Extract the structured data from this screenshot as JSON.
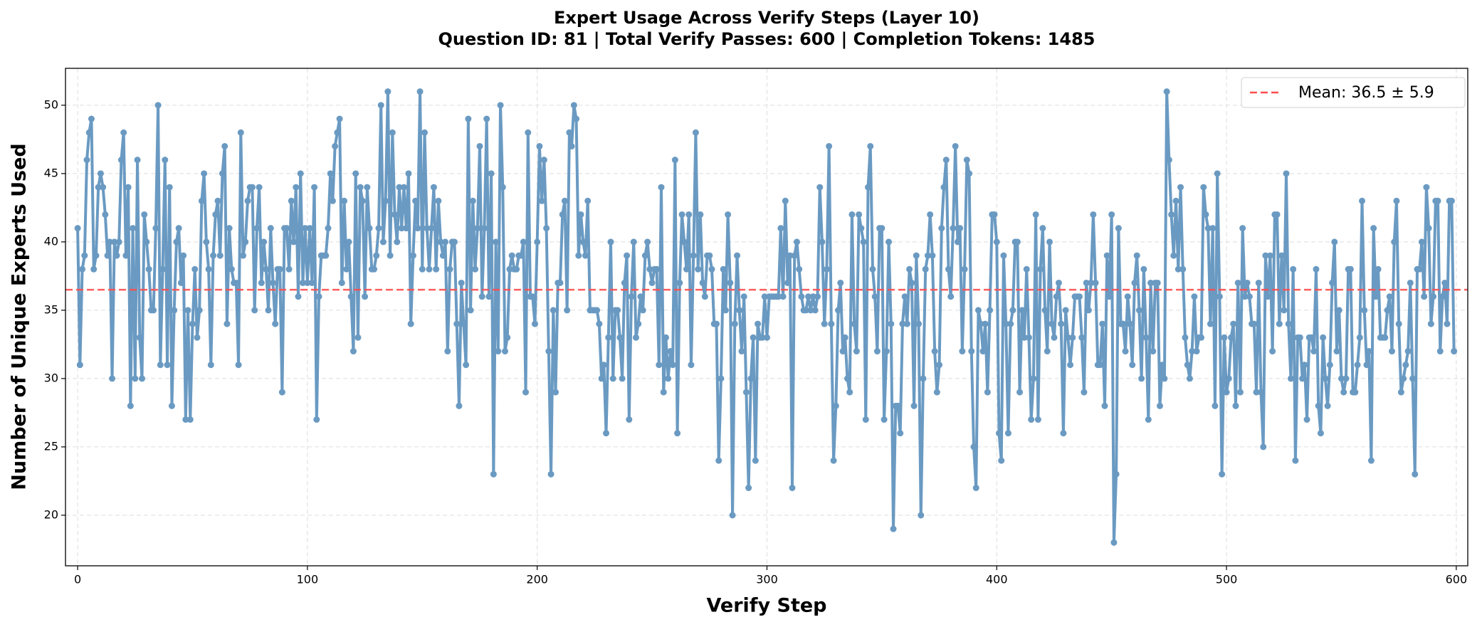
{
  "chart_data": {
    "type": "line",
    "title": "Expert Usage Across Verify Steps (Layer 10)",
    "subtitle": "Question ID: 81 | Total Verify Passes: 600 | Completion Tokens: 1485",
    "x_label": "Verify Step",
    "y_label": "Number of Unique Experts Used",
    "xlim": [
      -5.3,
      605
    ],
    "xticks": [
      0,
      100,
      200,
      300,
      400,
      500,
      600
    ],
    "ylim": [
      16.3,
      52.7
    ],
    "yticks": [
      20,
      25,
      30,
      35,
      40,
      45,
      50
    ],
    "grid": true,
    "legend_position": "upper right",
    "mean_line": {
      "value": 36.5,
      "label": "Mean: 36.5 ± 5.9",
      "color": "#ff4d4d"
    },
    "series": [
      {
        "name": "Unique experts",
        "color": "#4682b4",
        "values": [
          41,
          31,
          38,
          39,
          46,
          48,
          49,
          38,
          39,
          44,
          45,
          44,
          42,
          39,
          40,
          30,
          40,
          39,
          40,
          46,
          48,
          39,
          44,
          28,
          41,
          30,
          46,
          33,
          30,
          42,
          40,
          38,
          35,
          35,
          41,
          50,
          31,
          38,
          46,
          31,
          44,
          28,
          35,
          40,
          41,
          37,
          39,
          27,
          35,
          27,
          34,
          38,
          33,
          35,
          43,
          45,
          40,
          38,
          31,
          39,
          42,
          43,
          39,
          45,
          47,
          34,
          41,
          38,
          37,
          37,
          31,
          48,
          39,
          40,
          43,
          44,
          44,
          35,
          41,
          44,
          37,
          40,
          38,
          35,
          41,
          37,
          34,
          38,
          38,
          29,
          41,
          41,
          38,
          43,
          40,
          44,
          36,
          45,
          37,
          41,
          37,
          41,
          37,
          44,
          27,
          36,
          39,
          39,
          39,
          41,
          45,
          43,
          47,
          48,
          49,
          37,
          43,
          38,
          40,
          36,
          32,
          45,
          33,
          44,
          43,
          36,
          44,
          41,
          38,
          38,
          39,
          41,
          50,
          40,
          43,
          51,
          39,
          48,
          42,
          40,
          44,
          41,
          44,
          41,
          45,
          34,
          39,
          43,
          41,
          51,
          38,
          48,
          41,
          38,
          41,
          44,
          38,
          43,
          40,
          39,
          40,
          32,
          38,
          40,
          40,
          34,
          28,
          37,
          34,
          31,
          49,
          35,
          43,
          38,
          41,
          47,
          36,
          41,
          49,
          36,
          45,
          23,
          40,
          32,
          50,
          44,
          32,
          33,
          38,
          39,
          38,
          38,
          39,
          39,
          40,
          29,
          48,
          36,
          36,
          34,
          40,
          47,
          43,
          46,
          41,
          32,
          23,
          35,
          29,
          37,
          37,
          42,
          43,
          35,
          48,
          47,
          50,
          49,
          39,
          42,
          40,
          39,
          43,
          35,
          35,
          35,
          35,
          34,
          30,
          31,
          26,
          33,
          40,
          30,
          35,
          35,
          33,
          30,
          37,
          39,
          27,
          36,
          40,
          33,
          34,
          36,
          35,
          39,
          40,
          38,
          37,
          38,
          38,
          31,
          44,
          29,
          33,
          30,
          32,
          31,
          46,
          26,
          37,
          42,
          40,
          38,
          42,
          31,
          39,
          48,
          38,
          42,
          37,
          36,
          39,
          39,
          38,
          34,
          34,
          24,
          30,
          38,
          35,
          42,
          37,
          20,
          34,
          39,
          35,
          32,
          36,
          29,
          22,
          30,
          33,
          24,
          34,
          33,
          33,
          36,
          33,
          36,
          36,
          36,
          36,
          36,
          41,
          36,
          43,
          37,
          39,
          22,
          39,
          40,
          38,
          36,
          35,
          35,
          36,
          35,
          36,
          35,
          36,
          44,
          40,
          34,
          38,
          47,
          34,
          24,
          28,
          35,
          37,
          32,
          33,
          30,
          29,
          42,
          34,
          32,
          42,
          41,
          40,
          27,
          44,
          47,
          38,
          36,
          32,
          41,
          41,
          27,
          32,
          40,
          34,
          19,
          28,
          28,
          26,
          34,
          36,
          34,
          38,
          37,
          28,
          39,
          34,
          20,
          30,
          38,
          39,
          42,
          39,
          32,
          29,
          31,
          41,
          44,
          46,
          38,
          36,
          41,
          47,
          40,
          41,
          32,
          38,
          46,
          45,
          32,
          25,
          22,
          35,
          34,
          32,
          34,
          29,
          35,
          42,
          42,
          40,
          26,
          24,
          39,
          34,
          26,
          34,
          35,
          40,
          40,
          29,
          35,
          33,
          38,
          33,
          27,
          30,
          42,
          27,
          38,
          41,
          35,
          32,
          40,
          34,
          33,
          36,
          37,
          34,
          26,
          35,
          33,
          31,
          33,
          36,
          36,
          36,
          33,
          29,
          37,
          35,
          37,
          42,
          37,
          31,
          31,
          34,
          28,
          39,
          36,
          42,
          18,
          23,
          41,
          34,
          34,
          32,
          36,
          34,
          31,
          37,
          39,
          35,
          30,
          38,
          33,
          27,
          37,
          32,
          37,
          37,
          28,
          31,
          30,
          51,
          46,
          42,
          39,
          43,
          38,
          44,
          38,
          33,
          31,
          30,
          32,
          36,
          32,
          33,
          33,
          44,
          42,
          41,
          34,
          41,
          28,
          45,
          36,
          23,
          33,
          29,
          30,
          33,
          34,
          28,
          37,
          29,
          41,
          36,
          37,
          36,
          34,
          34,
          29,
          37,
          29,
          25,
          39,
          36,
          39,
          32,
          42,
          42,
          34,
          39,
          35,
          45,
          34,
          30,
          38,
          24,
          33,
          33,
          30,
          31,
          27,
          33,
          33,
          32,
          38,
          28,
          26,
          33,
          30,
          28,
          31,
          37,
          40,
          32,
          35,
          30,
          29,
          30,
          38,
          38,
          29,
          29,
          31,
          33,
          43,
          35,
          31,
          32,
          24,
          41,
          36,
          38,
          33,
          33,
          33,
          35,
          36,
          32,
          40,
          43,
          34,
          29,
          30,
          31,
          32,
          37,
          30,
          23,
          38,
          38,
          40,
          36,
          44,
          41,
          34,
          36,
          43,
          43,
          32,
          36,
          37,
          34,
          43,
          43,
          32
        ]
      }
    ]
  }
}
